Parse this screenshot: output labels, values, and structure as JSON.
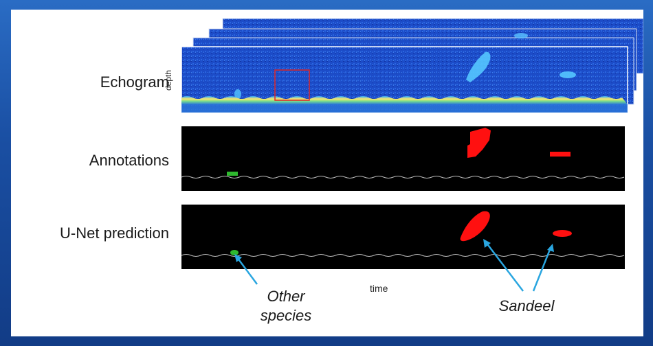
{
  "rows": {
    "echogram": "Echogram",
    "annotations": "Annotations",
    "prediction": "U-Net prediction"
  },
  "axes": {
    "depth": "depth",
    "time": "time"
  },
  "callouts": {
    "other_species_line1": "Other",
    "other_species_line2": "species",
    "sandeel": "Sandeel"
  },
  "colors": {
    "frame_blue": "#1a4fa3",
    "echogram_blue": "#1e4fd0",
    "sandeel_red": "#ff1010",
    "other_green": "#2fb82f",
    "arrow_blue": "#2aa6e0"
  }
}
